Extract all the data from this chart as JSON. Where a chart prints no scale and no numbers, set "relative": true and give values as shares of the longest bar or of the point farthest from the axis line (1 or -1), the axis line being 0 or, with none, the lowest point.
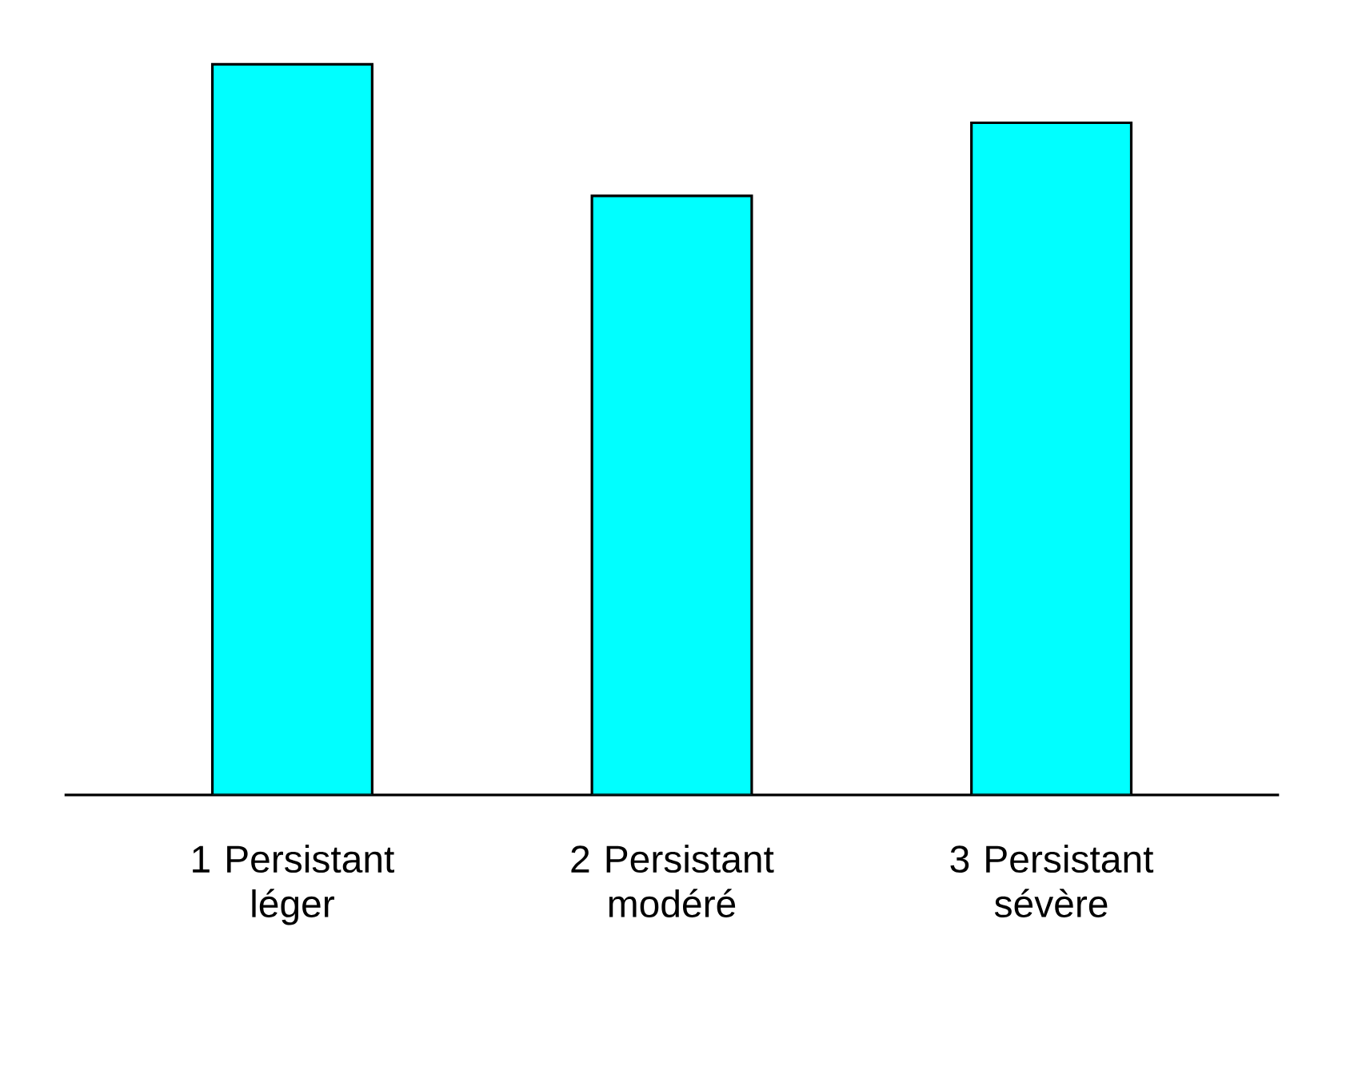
{
  "chart_data": {
    "type": "bar",
    "relative": true,
    "categories": [
      "1 Persistant léger",
      "2 Persistant modéré",
      "3 Persistant sévère"
    ],
    "values": [
      1,
      0.82,
      0.92
    ],
    "color": "#00ffff"
  }
}
